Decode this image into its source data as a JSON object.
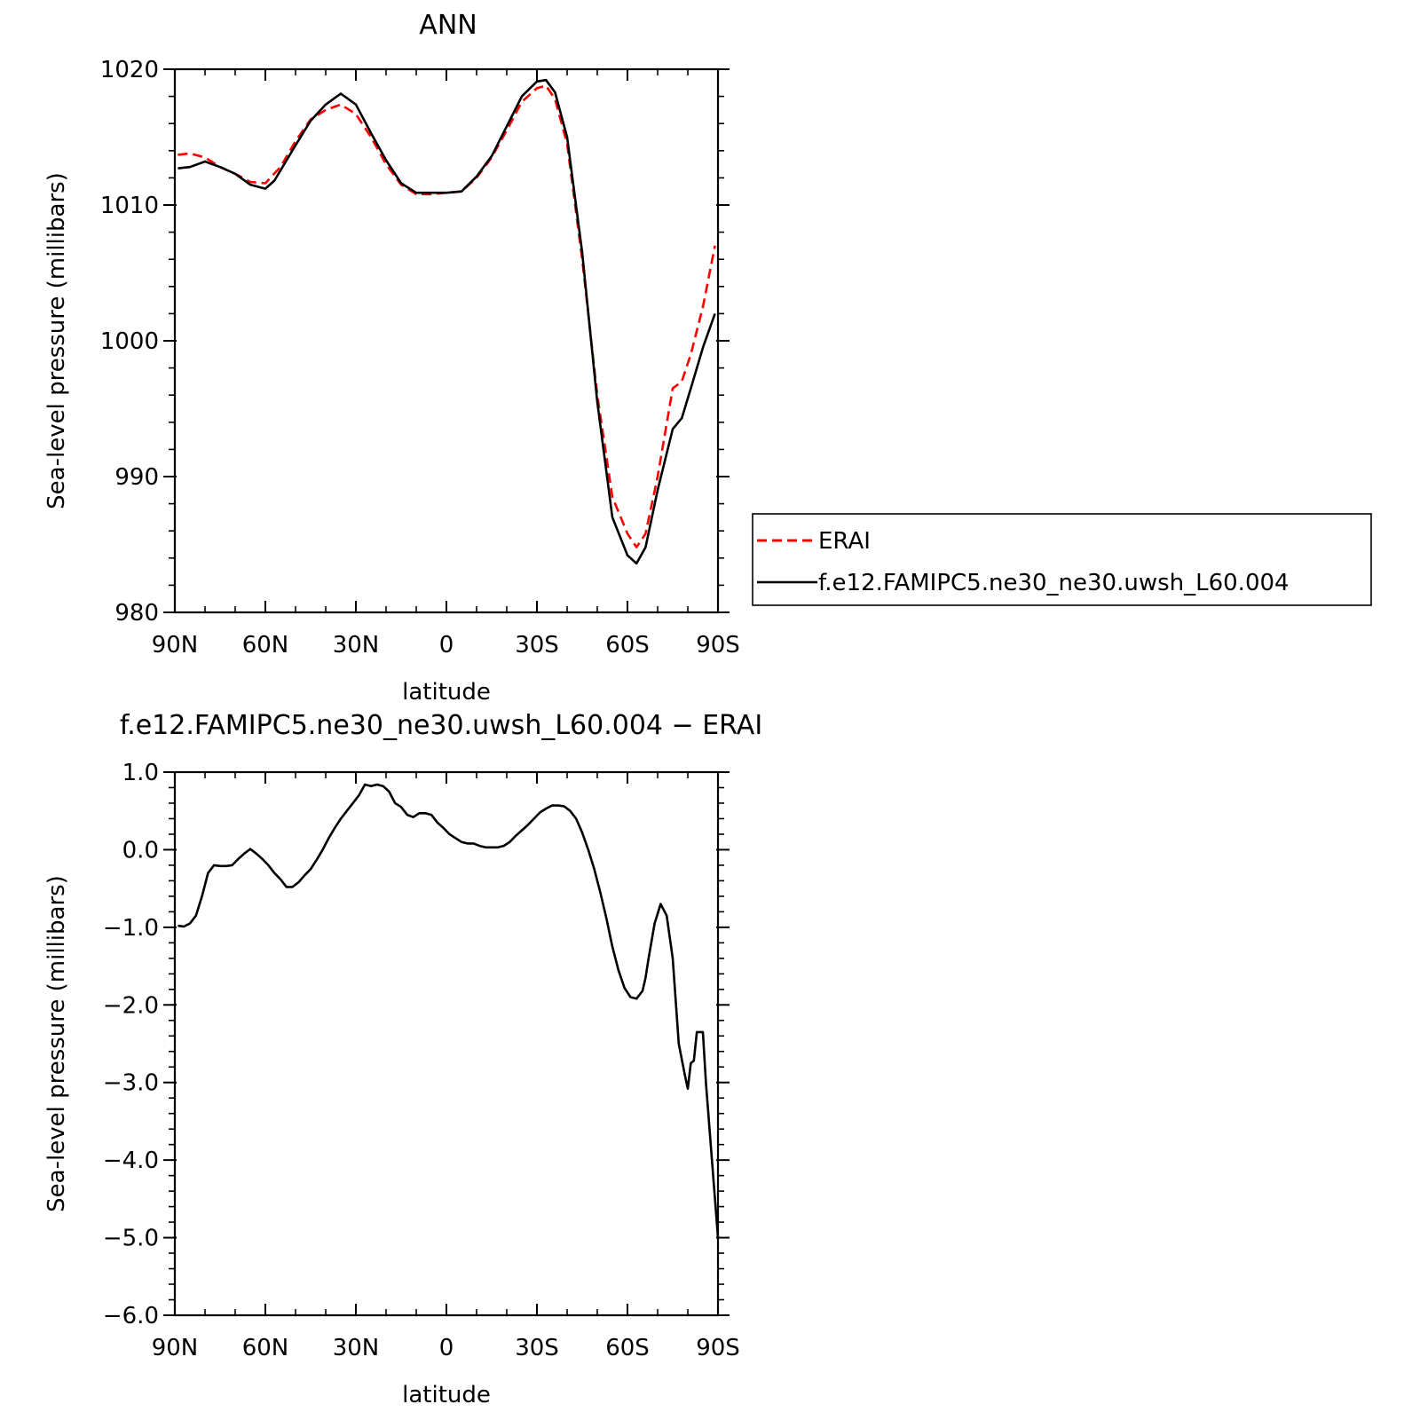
{
  "chart_data": [
    {
      "type": "line",
      "title": "ANN",
      "xlabel": "latitude",
      "ylabel": "Sea-level pressure (millibars)",
      "xlim": [
        90,
        -90
      ],
      "ylim": [
        980,
        1020
      ],
      "x_ticks": [
        90,
        60,
        30,
        0,
        -30,
        -60,
        -90
      ],
      "x_tick_labels": [
        "90N",
        "60N",
        "30N",
        "0",
        "30S",
        "60S",
        "90S"
      ],
      "y_ticks": [
        980,
        990,
        1000,
        1010,
        1020
      ],
      "y_tick_labels": [
        "980",
        "990",
        "1000",
        "1010",
        "1020"
      ],
      "grid": false,
      "legend": "right",
      "series": [
        {
          "name": "ERAI",
          "color": "#ff0000",
          "dash": "dashed",
          "x": [
            89,
            85,
            80,
            75,
            70,
            65,
            60,
            55,
            50,
            45,
            40,
            35,
            30,
            25,
            20,
            15,
            10,
            5,
            0,
            -5,
            -10,
            -15,
            -20,
            -25,
            -30,
            -33,
            -36,
            -40,
            -45,
            -50,
            -55,
            -60,
            -63,
            -66,
            -70,
            -75,
            -78,
            -81,
            -85,
            -89
          ],
          "y": [
            1013.7,
            1013.8,
            1013.5,
            1012.8,
            1012.3,
            1011.7,
            1011.6,
            1012.8,
            1014.7,
            1016.3,
            1017.0,
            1017.4,
            1016.7,
            1015.0,
            1013.0,
            1011.5,
            1010.8,
            1010.8,
            1010.9,
            1011.0,
            1012.0,
            1013.5,
            1015.5,
            1017.6,
            1018.6,
            1018.8,
            1017.8,
            1014.5,
            1006.0,
            996.0,
            988.5,
            985.8,
            984.8,
            985.8,
            990.0,
            996.5,
            997.0,
            999.0,
            1002.5,
            1007.0
          ]
        },
        {
          "name": "f.e12.FAMIPC5.ne30_ne30.uwsh_L60.004",
          "color": "#000000",
          "dash": "solid",
          "x": [
            89,
            85,
            80,
            75,
            70,
            65,
            60,
            57,
            50,
            45,
            40,
            35,
            30,
            25,
            20,
            15,
            10,
            5,
            0,
            -5,
            -10,
            -15,
            -20,
            -25,
            -30,
            -33,
            -36,
            -40,
            -45,
            -50,
            -55,
            -60,
            -63,
            -66,
            -70,
            -75,
            -78,
            -81,
            -85,
            -89
          ],
          "y": [
            1012.7,
            1012.8,
            1013.2,
            1012.8,
            1012.3,
            1011.5,
            1011.2,
            1011.8,
            1014.4,
            1016.2,
            1017.4,
            1018.2,
            1017.4,
            1015.3,
            1013.3,
            1011.6,
            1010.9,
            1010.9,
            1010.9,
            1011.0,
            1012.1,
            1013.6,
            1015.8,
            1018.0,
            1019.1,
            1019.2,
            1018.3,
            1015.0,
            1006.5,
            995.5,
            987.0,
            984.2,
            983.6,
            984.8,
            989.0,
            993.5,
            994.3,
            996.5,
            999.5,
            1002.0
          ]
        }
      ]
    },
    {
      "type": "line",
      "title": "f.e12.FAMIPC5.ne30_ne30.uwsh_L60.004 − ERAI",
      "xlabel": "latitude",
      "ylabel": "Sea-level pressure (millibars)",
      "xlim": [
        90,
        -90
      ],
      "ylim": [
        -6.0,
        1.0
      ],
      "x_ticks": [
        90,
        60,
        30,
        0,
        -30,
        -60,
        -90
      ],
      "x_tick_labels": [
        "90N",
        "60N",
        "30N",
        "0",
        "30S",
        "60S",
        "90S"
      ],
      "y_ticks": [
        -6,
        -5,
        -4,
        -3,
        -2,
        -1,
        0,
        1
      ],
      "y_tick_labels": [
        "−6.0",
        "−5.0",
        "−4.0",
        "−3.0",
        "−2.0",
        "−1.0",
        "0.0",
        "1.0"
      ],
      "grid": false,
      "series": [
        {
          "color": "#000000",
          "dash": "solid",
          "x": [
            89,
            87,
            85,
            83,
            81,
            79,
            77,
            75,
            73,
            71,
            69,
            67,
            65,
            63,
            61,
            59,
            57,
            55,
            53,
            51,
            49,
            47,
            45,
            43,
            41,
            39,
            37,
            35,
            33,
            31,
            29,
            27,
            25,
            23,
            21,
            19,
            17,
            15,
            13,
            11,
            9,
            7,
            5,
            3,
            1,
            -1,
            -3,
            -5,
            -7,
            -9,
            -11,
            -13,
            -15,
            -17,
            -19,
            -21,
            -23,
            -25,
            -27,
            -29,
            -31,
            -33,
            -35,
            -37,
            -39,
            -41,
            -43,
            -45,
            -47,
            -49,
            -51,
            -53,
            -55,
            -57,
            -59,
            -61,
            -63,
            -65,
            -66,
            -67,
            -69,
            -71,
            -73,
            -75,
            -77,
            -79,
            -80,
            -81,
            -82,
            -83,
            -84,
            -85,
            -86,
            -87,
            -88,
            -89,
            -90
          ],
          "y": [
            -0.98,
            -0.99,
            -0.95,
            -0.85,
            -0.6,
            -0.3,
            -0.2,
            -0.21,
            -0.21,
            -0.2,
            -0.12,
            -0.05,
            0.01,
            -0.05,
            -0.12,
            -0.2,
            -0.3,
            -0.38,
            -0.48,
            -0.48,
            -0.42,
            -0.33,
            -0.25,
            -0.13,
            0.0,
            0.15,
            0.28,
            0.4,
            0.5,
            0.6,
            0.7,
            0.84,
            0.82,
            0.84,
            0.82,
            0.75,
            0.6,
            0.55,
            0.45,
            0.42,
            0.47,
            0.47,
            0.45,
            0.35,
            0.28,
            0.2,
            0.15,
            0.1,
            0.08,
            0.08,
            0.05,
            0.03,
            0.03,
            0.03,
            0.05,
            0.1,
            0.18,
            0.25,
            0.32,
            0.4,
            0.48,
            0.53,
            0.57,
            0.57,
            0.56,
            0.5,
            0.4,
            0.22,
            0.0,
            -0.25,
            -0.55,
            -0.88,
            -1.25,
            -1.55,
            -1.78,
            -1.9,
            -1.92,
            -1.82,
            -1.65,
            -1.4,
            -0.95,
            -0.7,
            -0.85,
            -1.4,
            -2.5,
            -2.9,
            -3.08,
            -2.75,
            -2.72,
            -2.35,
            -2.35,
            -2.35,
            -3.0,
            -3.5,
            -4.0,
            -4.5,
            -5.0
          ]
        }
      ]
    }
  ]
}
